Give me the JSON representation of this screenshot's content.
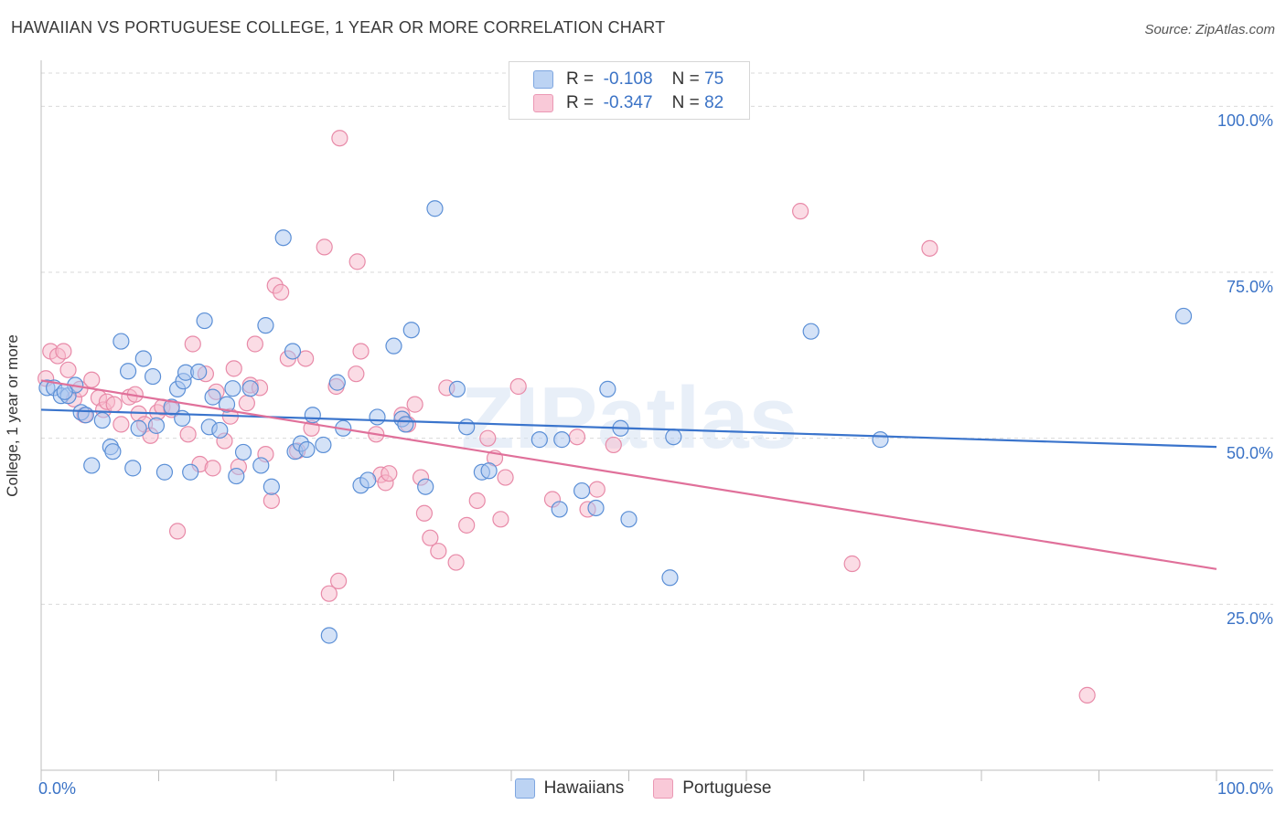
{
  "title": "HAWAIIAN VS PORTUGUESE COLLEGE, 1 YEAR OR MORE CORRELATION CHART",
  "source": "Source: ZipAtlas.com",
  "watermark": "ZIPatlas",
  "legend_top": [
    {
      "r_label": "R =",
      "r_value": "-0.108",
      "n_label": "N =",
      "n_value": "75"
    },
    {
      "r_label": "R =",
      "r_value": "-0.347",
      "n_label": "N =",
      "n_value": "82"
    }
  ],
  "legend_bottom": [
    "Hawaiians",
    "Portuguese"
  ],
  "colors": {
    "hawaiians_fill": "#a9c6ef",
    "hawaiians_stroke": "#5b8fd6",
    "hawaiians_line": "#3a74cc",
    "portuguese_fill": "#f7b9cc",
    "portuguese_stroke": "#e88aa8",
    "portuguese_line": "#e0709a",
    "tick_text": "#3b73c6",
    "grid": "#d9d9d9"
  },
  "chart_data": {
    "type": "scatter",
    "title": "HAWAIIAN VS PORTUGUESE COLLEGE, 1 YEAR OR MORE CORRELATION CHART",
    "xlabel": "",
    "ylabel": "College, 1 year or more",
    "xlim": [
      0,
      100
    ],
    "ylim": [
      0,
      105
    ],
    "x_tick_labels": [
      "0.0%",
      "100.0%"
    ],
    "y_ticks": [
      25,
      50,
      75,
      100
    ],
    "y_tick_labels": [
      "25.0%",
      "50.0%",
      "75.0%",
      "100.0%"
    ],
    "grid": true,
    "series": [
      {
        "name": "Hawaiians",
        "r": -0.108,
        "n": 75,
        "trend": {
          "x": [
            0,
            100
          ],
          "y": [
            54.3,
            48.7
          ]
        },
        "points": [
          [
            0.5,
            57.6
          ],
          [
            1.1,
            57.6
          ],
          [
            1.7,
            56.4
          ],
          [
            2.3,
            56.4
          ],
          [
            2.9,
            58.0
          ],
          [
            3.4,
            53.9
          ],
          [
            3.8,
            53.5
          ],
          [
            4.3,
            45.9
          ],
          [
            5.2,
            52.7
          ],
          [
            5.9,
            48.7
          ],
          [
            6.1,
            48.0
          ],
          [
            6.8,
            64.6
          ],
          [
            7.4,
            60.1
          ],
          [
            7.8,
            45.5
          ],
          [
            8.3,
            51.5
          ],
          [
            8.7,
            62.0
          ],
          [
            9.5,
            59.3
          ],
          [
            9.8,
            51.9
          ],
          [
            10.5,
            44.9
          ],
          [
            11.1,
            54.7
          ],
          [
            11.6,
            57.4
          ],
          [
            12.1,
            58.6
          ],
          [
            12.3,
            59.9
          ],
          [
            12.7,
            44.9
          ],
          [
            13.4,
            60.0
          ],
          [
            13.9,
            67.7
          ],
          [
            14.3,
            51.7
          ],
          [
            14.6,
            56.2
          ],
          [
            15.2,
            51.2
          ],
          [
            15.8,
            55.1
          ],
          [
            16.3,
            57.5
          ],
          [
            16.6,
            44.3
          ],
          [
            17.2,
            47.9
          ],
          [
            17.8,
            57.5
          ],
          [
            18.7,
            45.9
          ],
          [
            19.1,
            67.0
          ],
          [
            19.6,
            42.7
          ],
          [
            20.6,
            80.2
          ],
          [
            21.4,
            63.1
          ],
          [
            21.6,
            48.0
          ],
          [
            22.1,
            49.2
          ],
          [
            22.6,
            48.3
          ],
          [
            23.1,
            53.5
          ],
          [
            24.0,
            49.0
          ],
          [
            25.2,
            58.4
          ],
          [
            25.7,
            51.5
          ],
          [
            27.2,
            42.9
          ],
          [
            27.8,
            43.7
          ],
          [
            28.6,
            53.2
          ],
          [
            30.0,
            63.9
          ],
          [
            30.7,
            52.9
          ],
          [
            31.0,
            52.1
          ],
          [
            31.5,
            66.3
          ],
          [
            32.7,
            42.7
          ],
          [
            33.5,
            84.6
          ],
          [
            35.4,
            57.4
          ],
          [
            36.2,
            51.7
          ],
          [
            37.5,
            44.9
          ],
          [
            38.1,
            45.1
          ],
          [
            42.4,
            49.8
          ],
          [
            44.1,
            39.3
          ],
          [
            44.3,
            49.8
          ],
          [
            46.0,
            42.1
          ],
          [
            47.2,
            39.5
          ],
          [
            48.2,
            57.4
          ],
          [
            49.3,
            51.5
          ],
          [
            50.0,
            37.8
          ],
          [
            53.5,
            29.0
          ],
          [
            53.8,
            50.2
          ],
          [
            65.5,
            66.1
          ],
          [
            71.4,
            49.8
          ],
          [
            97.2,
            68.4
          ],
          [
            24.5,
            20.3
          ],
          [
            2.0,
            57.0
          ],
          [
            12.0,
            53.0
          ]
        ]
      },
      {
        "name": "Portuguese",
        "r": -0.347,
        "n": 82,
        "trend": {
          "x": [
            0,
            100
          ],
          "y": [
            58.7,
            30.3
          ]
        },
        "points": [
          [
            0.4,
            59.0
          ],
          [
            0.8,
            63.1
          ],
          [
            1.4,
            62.4
          ],
          [
            1.9,
            63.1
          ],
          [
            2.3,
            60.3
          ],
          [
            2.8,
            55.9
          ],
          [
            3.3,
            57.4
          ],
          [
            3.7,
            53.5
          ],
          [
            4.3,
            58.8
          ],
          [
            4.9,
            56.1
          ],
          [
            5.3,
            54.3
          ],
          [
            5.6,
            55.5
          ],
          [
            6.2,
            55.1
          ],
          [
            6.8,
            52.1
          ],
          [
            7.5,
            56.2
          ],
          [
            8.0,
            56.6
          ],
          [
            8.3,
            53.7
          ],
          [
            8.8,
            52.1
          ],
          [
            9.3,
            50.4
          ],
          [
            9.9,
            53.9
          ],
          [
            10.3,
            54.7
          ],
          [
            11.1,
            54.3
          ],
          [
            11.6,
            36.0
          ],
          [
            12.5,
            50.6
          ],
          [
            12.9,
            64.2
          ],
          [
            13.5,
            46.1
          ],
          [
            14.0,
            59.7
          ],
          [
            14.6,
            45.5
          ],
          [
            14.9,
            57.0
          ],
          [
            15.6,
            49.6
          ],
          [
            16.1,
            53.3
          ],
          [
            16.4,
            60.5
          ],
          [
            16.8,
            45.7
          ],
          [
            17.5,
            55.3
          ],
          [
            17.8,
            58.0
          ],
          [
            18.2,
            64.2
          ],
          [
            18.6,
            57.6
          ],
          [
            19.1,
            47.6
          ],
          [
            19.6,
            40.6
          ],
          [
            19.9,
            73.0
          ],
          [
            20.4,
            72.0
          ],
          [
            21.0,
            62.0
          ],
          [
            21.8,
            48.1
          ],
          [
            22.5,
            62.0
          ],
          [
            23.0,
            51.5
          ],
          [
            24.1,
            78.8
          ],
          [
            25.1,
            57.8
          ],
          [
            25.4,
            95.2
          ],
          [
            26.8,
            59.7
          ],
          [
            26.9,
            76.6
          ],
          [
            27.2,
            63.1
          ],
          [
            28.5,
            50.6
          ],
          [
            28.9,
            44.5
          ],
          [
            29.3,
            43.3
          ],
          [
            29.6,
            44.7
          ],
          [
            30.7,
            53.5
          ],
          [
            31.2,
            52.1
          ],
          [
            31.8,
            55.1
          ],
          [
            32.3,
            44.1
          ],
          [
            32.6,
            38.7
          ],
          [
            33.1,
            35.0
          ],
          [
            33.8,
            33.0
          ],
          [
            34.5,
            57.6
          ],
          [
            35.3,
            31.3
          ],
          [
            36.2,
            36.9
          ],
          [
            37.1,
            40.6
          ],
          [
            38.0,
            50.0
          ],
          [
            38.6,
            47.0
          ],
          [
            39.1,
            37.8
          ],
          [
            39.5,
            44.1
          ],
          [
            40.6,
            57.8
          ],
          [
            43.5,
            40.8
          ],
          [
            45.6,
            50.2
          ],
          [
            46.5,
            39.3
          ],
          [
            47.3,
            42.3
          ],
          [
            48.7,
            49.0
          ],
          [
            64.6,
            84.2
          ],
          [
            69.0,
            31.1
          ],
          [
            75.6,
            78.6
          ],
          [
            89.0,
            11.3
          ],
          [
            24.5,
            26.6
          ],
          [
            25.3,
            28.5
          ]
        ]
      }
    ]
  }
}
